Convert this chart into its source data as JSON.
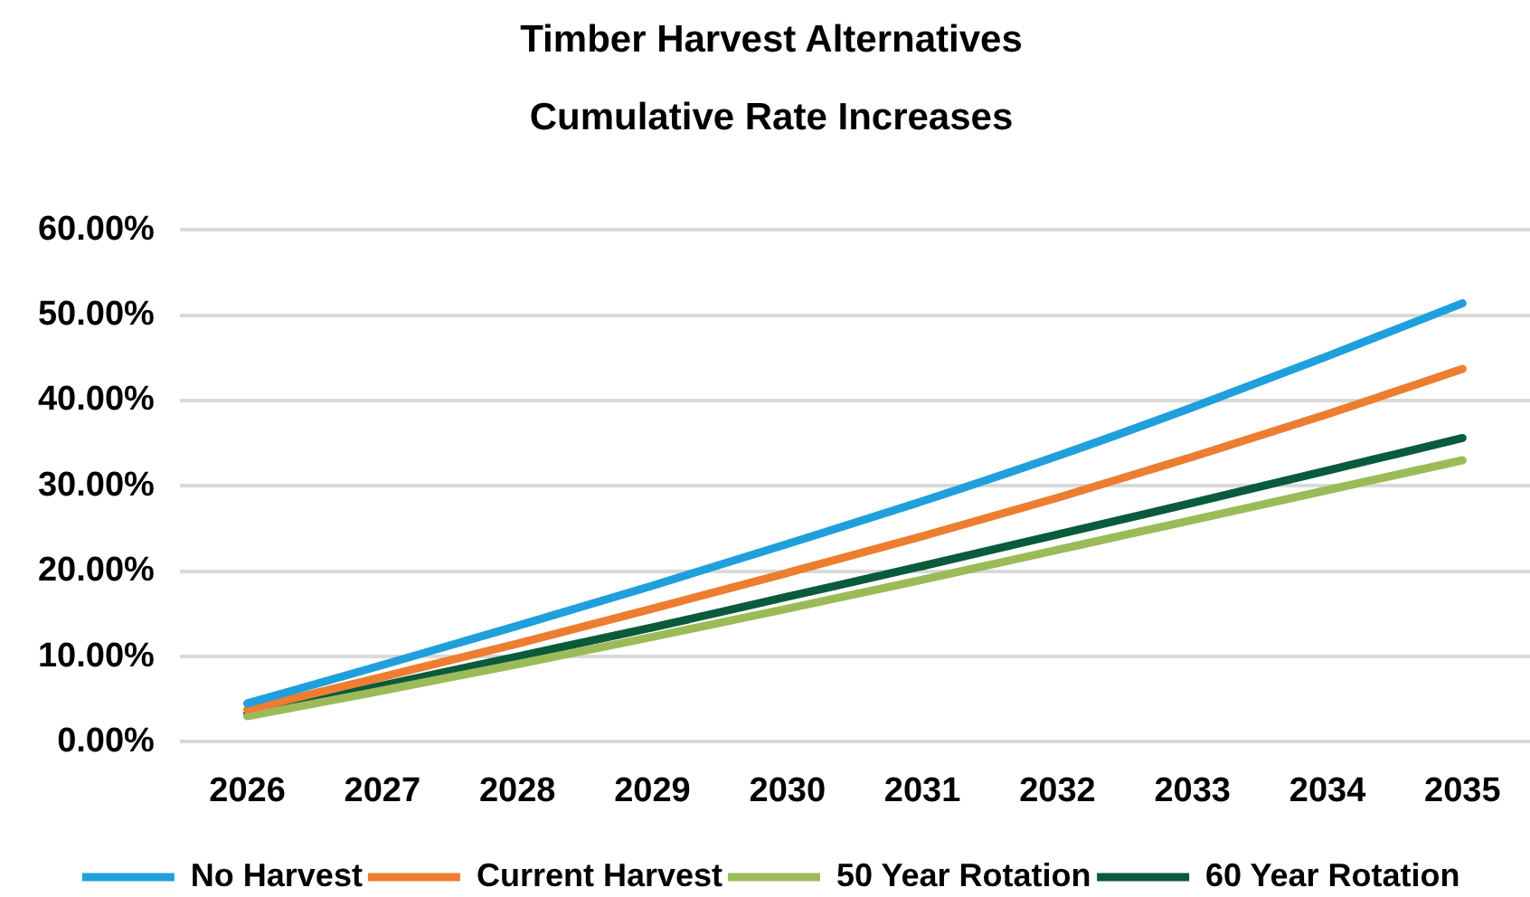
{
  "chart_data": {
    "type": "line",
    "title": "Timber Harvest Alternatives\nCumulative Rate Increases",
    "categories": [
      "2026",
      "2027",
      "2028",
      "2029",
      "2030",
      "2031",
      "2032",
      "2033",
      "2034",
      "2035"
    ],
    "series": [
      {
        "name": "No Harvest",
        "color": "#1fa0dc",
        "values": [
          4.5,
          9.0,
          13.6,
          18.3,
          23.2,
          28.2,
          33.5,
          39.2,
          45.2,
          51.4
        ]
      },
      {
        "name": "Current Harvest",
        "color": "#ed7d31",
        "values": [
          3.8,
          7.6,
          11.5,
          15.6,
          19.8,
          24.1,
          28.6,
          33.4,
          38.4,
          43.7
        ]
      },
      {
        "name": "50 Year Rotation",
        "color": "#9bbb59",
        "values": [
          3.0,
          6.0,
          9.1,
          12.3,
          15.6,
          19.0,
          22.5,
          26.0,
          29.5,
          33.0
        ]
      },
      {
        "name": "60 Year Rotation",
        "color": "#0a5a3c",
        "values": [
          3.3,
          6.6,
          10.0,
          13.4,
          17.0,
          20.6,
          24.3,
          28.0,
          31.8,
          35.6
        ]
      }
    ],
    "ylim": [
      0,
      60
    ],
    "yticks": [
      {
        "value": 0,
        "label": "0.00%"
      },
      {
        "value": 10,
        "label": "10.00%"
      },
      {
        "value": 20,
        "label": "20.00%"
      },
      {
        "value": 30,
        "label": "30.00%"
      },
      {
        "value": 40,
        "label": "40.00%"
      },
      {
        "value": 50,
        "label": "50.00%"
      },
      {
        "value": 60,
        "label": "60.00%"
      }
    ],
    "grid": "y",
    "legend": "bottom",
    "marker": "none",
    "line_style": "solid"
  }
}
